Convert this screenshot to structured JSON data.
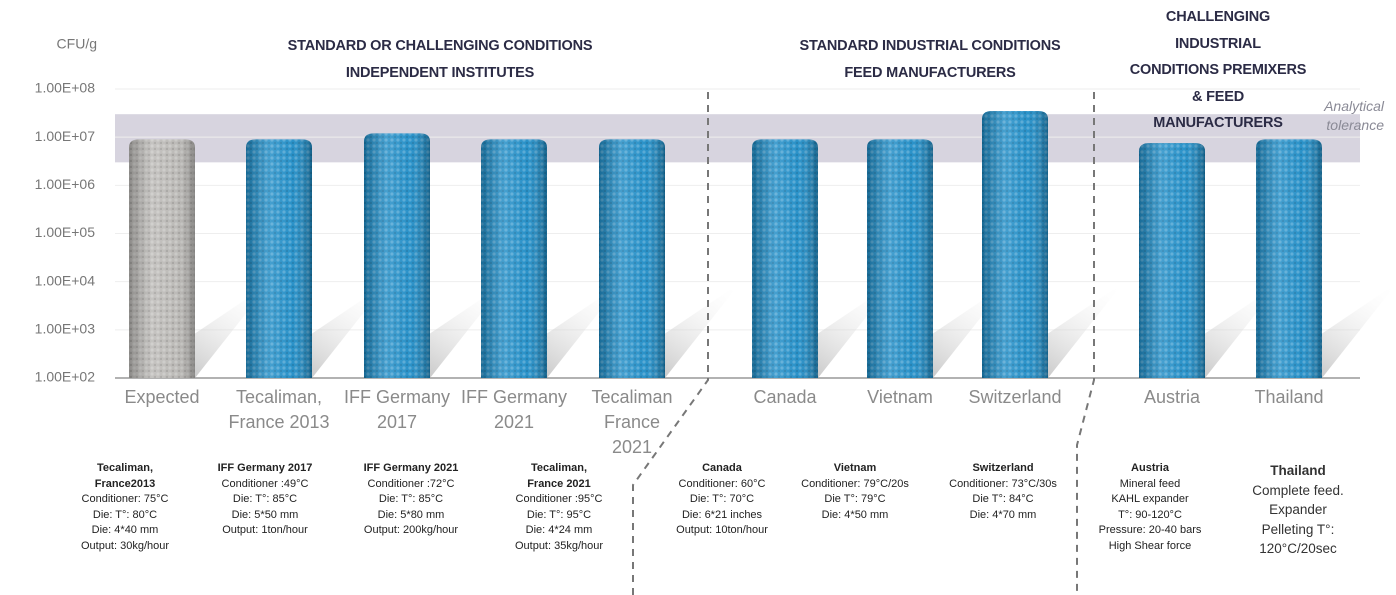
{
  "chart_data": {
    "type": "bar",
    "y_label": "CFU/g",
    "log_scale": true,
    "grid": true,
    "ylim": [
      100,
      100000000
    ],
    "yticks": [
      {
        "value": 100,
        "label": "1.00E+02"
      },
      {
        "value": 1000,
        "label": "1.00E+03"
      },
      {
        "value": 10000,
        "label": "1.00E+04"
      },
      {
        "value": 100000,
        "label": "1.00E+05"
      },
      {
        "value": 1000000,
        "label": "1.00E+06"
      },
      {
        "value": 10000000,
        "label": "1.00E+07"
      },
      {
        "value": 100000000,
        "label": "1.00E+08"
      }
    ],
    "groups": [
      "STANDARD OR CHALLENGING CONDITIONS\nINDEPENDENT INSTITUTES",
      "STANDARD INDUSTRIAL CONDITIONS\nFEED MANUFACTURERS",
      "CHALLENGING INDUSTRIAL\nCONDITIONS PREMIXERS & FEED\nMANUFACTURERS"
    ],
    "categories": [
      "Expected",
      "Tecaliman,\nFrance 2013",
      "IFF Germany\n2017",
      "IFF Germany\n2021",
      "Tecaliman\nFrance\n2021",
      "Canada",
      "Vietnam",
      "Switzerland",
      "Austria",
      "Thailand"
    ],
    "values": [
      9000000,
      9000000,
      12000000,
      9000000,
      9000000,
      9000000,
      9000000,
      35000000,
      7500000,
      9000000
    ],
    "colors": [
      "#b9b7b4",
      "#1e8cc6",
      "#1e8cc6",
      "#1e8cc6",
      "#1e8cc6",
      "#1e8cc6",
      "#1e8cc6",
      "#1e8cc6",
      "#1e8cc6",
      "#1e8cc6"
    ],
    "tolerance_band": {
      "label": "Analytical\ntolerance",
      "range": [
        3000000,
        30000000
      ],
      "color": "#d7d4df"
    },
    "notes": [
      {
        "title": "Tecaliman,\nFrance2013",
        "lines": [
          "Conditioner: 75°C",
          "Die: T°: 80°C",
          "Die: 4*40 mm",
          "Output: 30kg/hour"
        ]
      },
      {
        "title": "IFF Germany 2017",
        "lines": [
          "Conditioner :49°C",
          "Die: T°: 85°C",
          "Die: 5*50 mm",
          "Output: 1ton/hour"
        ]
      },
      {
        "title": "IFF Germany 2021",
        "lines": [
          "Conditioner :72°C",
          "Die: T°: 85°C",
          "Die: 5*80 mm",
          "Output: 200kg/hour"
        ]
      },
      {
        "title": "Tecaliman,\nFrance 2021",
        "lines": [
          "Conditioner :95°C",
          "Die: T°: 95°C",
          "Die: 4*24 mm",
          "Output: 35kg/hour"
        ]
      },
      {
        "title": "Canada",
        "lines": [
          "Conditioner: 60°C",
          "Die: T°: 70°C",
          "Die: 6*21 inches",
          "Output: 10ton/hour"
        ]
      },
      {
        "title": "Vietnam",
        "lines": [
          "Conditioner: 79°C/20s",
          "Die T°: 79°C",
          "Die: 4*50 mm"
        ]
      },
      {
        "title": "Switzerland",
        "lines": [
          "Conditioner: 73°C/30s",
          "Die T°: 84°C",
          "Die: 4*70 mm"
        ]
      },
      {
        "title": "Austria",
        "lines": [
          "Mineral feed",
          "KAHL expander",
          "T°: 90-120°C",
          "Pressure: 20-40 bars",
          "High Shear force"
        ]
      },
      {
        "title": "Thailand",
        "lines": [
          "Complete feed.",
          "Expander",
          "Pelleting T°:",
          "120°C/20sec"
        ]
      }
    ]
  }
}
